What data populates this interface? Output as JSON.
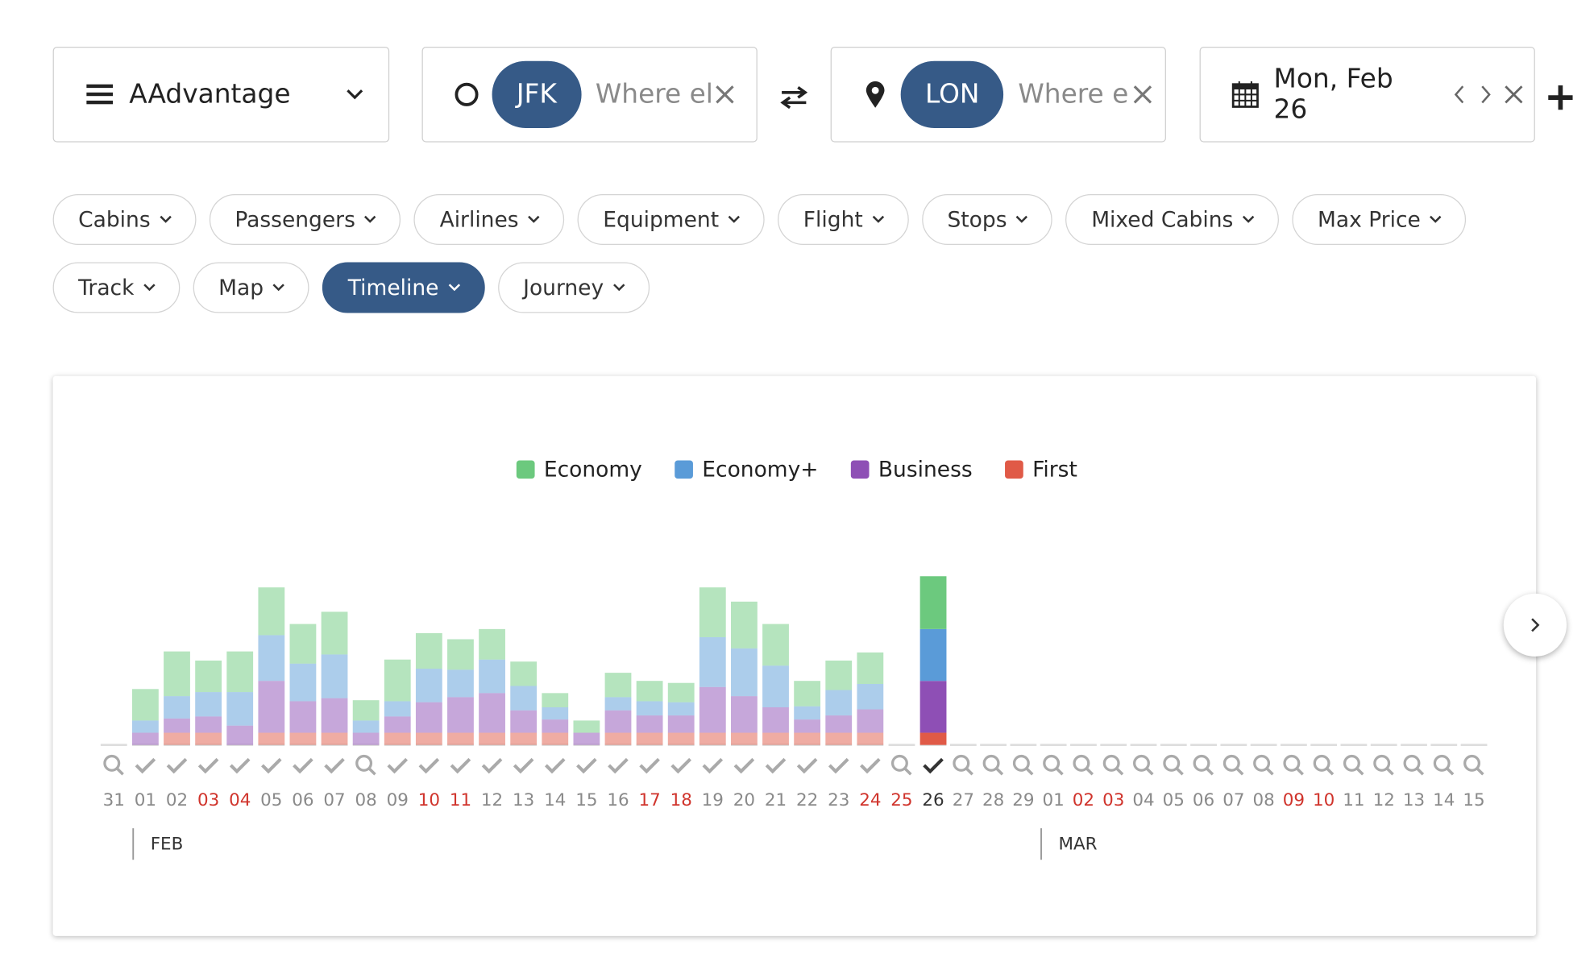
{
  "search": {
    "program": "AAdvantage",
    "origin": "JFK",
    "origin_placeholder": "Where el",
    "destination": "LON",
    "destination_placeholder": "Where e",
    "date": "Mon, Feb 26"
  },
  "filters": {
    "row1": [
      "Cabins",
      "Passengers",
      "Airlines",
      "Equipment",
      "Flight",
      "Stops",
      "Mixed Cabins",
      "Max Price"
    ],
    "row2": [
      "Track",
      "Map",
      "Timeline",
      "Journey"
    ],
    "active": "Timeline"
  },
  "chart_data": {
    "type": "bar",
    "stacked": true,
    "categories": [
      "31",
      "01",
      "02",
      "03",
      "04",
      "05",
      "06",
      "07",
      "08",
      "09",
      "10",
      "11",
      "12",
      "13",
      "14",
      "15",
      "16",
      "17",
      "18",
      "19",
      "20",
      "21",
      "22",
      "23",
      "24",
      "25",
      "26",
      "27",
      "28",
      "29",
      "01",
      "02",
      "03",
      "04",
      "05",
      "06",
      "07",
      "08",
      "09",
      "10",
      "11",
      "12",
      "13",
      "14",
      "15"
    ],
    "label_colors": [
      "#8a8a8a",
      "#8a8a8a",
      "#8a8a8a",
      "#d0342c",
      "#d0342c",
      "#8a8a8a",
      "#8a8a8a",
      "#8a8a8a",
      "#8a8a8a",
      "#8a8a8a",
      "#d0342c",
      "#d0342c",
      "#8a8a8a",
      "#8a8a8a",
      "#8a8a8a",
      "#8a8a8a",
      "#8a8a8a",
      "#d0342c",
      "#d0342c",
      "#8a8a8a",
      "#8a8a8a",
      "#8a8a8a",
      "#8a8a8a",
      "#8a8a8a",
      "#d0342c",
      "#d0342c",
      "#333333",
      "#8a8a8a",
      "#8a8a8a",
      "#8a8a8a",
      "#8a8a8a",
      "#d0342c",
      "#d0342c",
      "#8a8a8a",
      "#8a8a8a",
      "#8a8a8a",
      "#8a8a8a",
      "#8a8a8a",
      "#d0342c",
      "#d0342c",
      "#8a8a8a",
      "#8a8a8a",
      "#8a8a8a",
      "#8a8a8a",
      "#8a8a8a"
    ],
    "icons": [
      "search",
      "check",
      "check",
      "check",
      "check",
      "check",
      "check",
      "check",
      "search",
      "check",
      "check",
      "check",
      "check",
      "check",
      "check",
      "check",
      "check",
      "check",
      "check",
      "check",
      "check",
      "check",
      "check",
      "check",
      "check",
      "search",
      "check-active",
      "search",
      "search",
      "search",
      "search",
      "search",
      "search",
      "search",
      "search",
      "search",
      "search",
      "search",
      "search",
      "search",
      "search",
      "search",
      "search",
      "search",
      "search"
    ],
    "highlight": 26,
    "months": [
      "FEB",
      "MAR"
    ],
    "series": [
      {
        "name": "Economy",
        "color": "#6cc97e",
        "values": [
          null,
          31,
          44,
          31,
          40,
          47,
          39,
          42,
          20,
          41,
          35,
          30,
          30,
          24,
          14,
          12,
          24,
          20,
          19,
          49,
          46,
          41,
          25,
          29,
          31,
          null,
          52,
          null,
          null,
          null,
          null,
          null,
          null,
          null,
          null,
          null,
          null,
          null,
          null,
          null,
          null,
          null,
          null,
          null,
          null
        ]
      },
      {
        "name": "Economy+",
        "color": "#5a9bd8",
        "values": [
          null,
          12,
          22,
          24,
          33,
          45,
          37,
          43,
          12,
          15,
          33,
          27,
          33,
          24,
          12,
          0,
          13,
          14,
          13,
          49,
          47,
          41,
          13,
          25,
          25,
          null,
          51,
          null,
          null,
          null,
          null,
          null,
          null,
          null,
          null,
          null,
          null,
          null,
          null,
          null,
          null,
          null,
          null,
          null,
          null
        ]
      },
      {
        "name": "Business",
        "color": "#8e4fb5",
        "values": [
          null,
          12,
          14,
          16,
          19,
          51,
          31,
          34,
          12,
          16,
          30,
          35,
          39,
          22,
          13,
          12,
          22,
          17,
          17,
          45,
          36,
          25,
          13,
          17,
          23,
          null,
          51,
          null,
          null,
          null,
          null,
          null,
          null,
          null,
          null,
          null,
          null,
          null,
          null,
          null,
          null,
          null,
          null,
          null,
          null
        ]
      },
      {
        "name": "First",
        "color": "#e05a47",
        "values": [
          null,
          0,
          12,
          12,
          0,
          12,
          12,
          12,
          0,
          12,
          12,
          12,
          12,
          12,
          12,
          0,
          12,
          12,
          12,
          12,
          12,
          12,
          12,
          12,
          12,
          null,
          12,
          null,
          null,
          null,
          null,
          null,
          null,
          null,
          null,
          null,
          null,
          null,
          null,
          null,
          null,
          null,
          null,
          null,
          null
        ]
      }
    ]
  }
}
